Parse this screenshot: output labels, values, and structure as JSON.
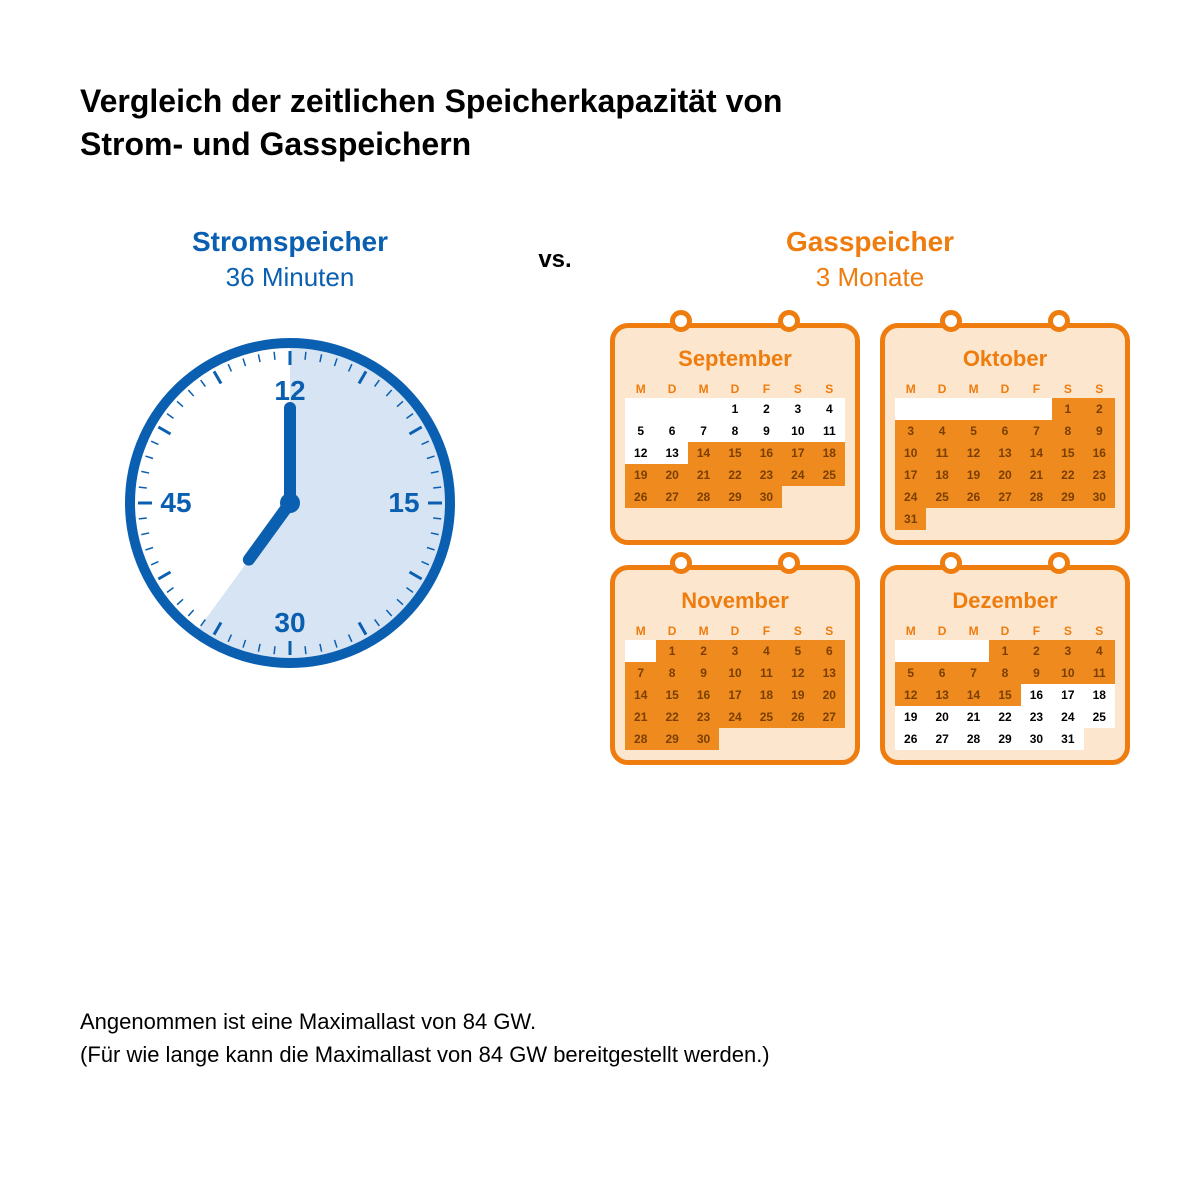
{
  "title_line1": "Vergleich der zeitlichen Speicherkapazität von",
  "title_line2": "Strom- und Gasspeichern",
  "vs_label": "vs.",
  "footnote_line1": "Angenommen ist eine Maximallast von 84 GW.",
  "footnote_line2": "(Für wie lange kann die Maximallast von 84 GW bereitgestellt werden.)",
  "colors": {
    "text": "#000000",
    "strom_primary": "#0a5fb0",
    "strom_light": "#d6e4f3",
    "gas_primary": "#ee7c0e",
    "gas_light": "#fce7ce",
    "gas_hl": "#ee8a1e",
    "gas_hl_text": "#7a3f00",
    "white": "#ffffff"
  },
  "strom": {
    "title": "Stromspeicher",
    "duration": "36 Minuten",
    "clock": {
      "labels": {
        "n12": "12",
        "n15": "15",
        "n30": "30",
        "n45": "45"
      },
      "minute_angle": 0,
      "minute_hand_length": 95,
      "minute_hand_width": 12,
      "hour_angle": 216,
      "hour_hand_length": 70,
      "hour_hand_width": 12,
      "shade_start_deg": 0,
      "shade_end_deg": 216,
      "radius": 160
    }
  },
  "gas": {
    "title": "Gasspeicher",
    "duration": "3 Monate",
    "dow": [
      "M",
      "D",
      "M",
      "D",
      "F",
      "S",
      "S"
    ],
    "calendars": [
      {
        "month": "September",
        "leading_blanks": 3,
        "days": 30,
        "hl_start": 14,
        "hl_end": 30
      },
      {
        "month": "Oktober",
        "leading_blanks": 5,
        "days": 31,
        "hl_start": 1,
        "hl_end": 31
      },
      {
        "month": "November",
        "leading_blanks": 1,
        "days": 30,
        "hl_start": 1,
        "hl_end": 30
      },
      {
        "month": "Dezember",
        "leading_blanks": 3,
        "days": 31,
        "hl_start": 1,
        "hl_end": 15
      }
    ]
  }
}
